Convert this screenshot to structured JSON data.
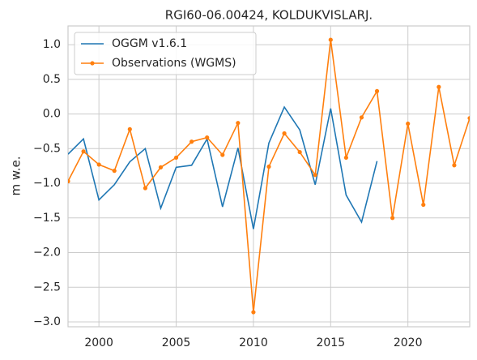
{
  "chart_data": {
    "type": "line",
    "title": "RGI60-06.00424, KOLDUKVISLARJ.",
    "ylabel": "m w.e.",
    "x": [
      1998,
      1999,
      2000,
      2001,
      2002,
      2003,
      2004,
      2005,
      2006,
      2007,
      2008,
      2009,
      2010,
      2011,
      2012,
      2013,
      2014,
      2015,
      2016,
      2017,
      2018,
      2019,
      2020,
      2021,
      2022,
      2023,
      2024
    ],
    "series": [
      {
        "name": "OGGM v1.6.1",
        "color": "#1f77b4",
        "marker": false,
        "values": [
          -0.58,
          -0.36,
          -1.24,
          -1.02,
          -0.69,
          -0.5,
          -1.36,
          -0.77,
          -0.74,
          -0.36,
          -1.34,
          -0.49,
          -1.66,
          -0.42,
          0.1,
          -0.23,
          -1.02,
          0.08,
          -1.17,
          -1.56,
          -0.68,
          null,
          null,
          null,
          null,
          null,
          null
        ]
      },
      {
        "name": "Observations (WGMS)",
        "color": "#ff7f0e",
        "marker": true,
        "values": [
          -0.97,
          -0.54,
          -0.73,
          -0.82,
          -0.22,
          -1.07,
          -0.77,
          -0.63,
          -0.4,
          -0.34,
          -0.59,
          -0.13,
          -2.86,
          -0.76,
          -0.28,
          -0.55,
          -0.88,
          1.07,
          -0.63,
          -0.05,
          0.33,
          -1.5,
          -0.14,
          -1.31,
          0.39,
          -0.74,
          -0.06
        ]
      }
    ],
    "xlim": [
      1998,
      2024
    ],
    "xticks": [
      2000,
      2005,
      2010,
      2015,
      2020
    ],
    "ylim": [
      -3.07,
      1.27
    ],
    "yticks": [
      {
        "value": -3,
        "label": "−3.0"
      },
      {
        "value": -2.5,
        "label": "−2.5"
      },
      {
        "value": -2,
        "label": "−2.0"
      },
      {
        "value": -1.5,
        "label": "−1.5"
      },
      {
        "value": -1,
        "label": "−1.0"
      },
      {
        "value": -0.5,
        "label": "−0.5"
      },
      {
        "value": 0,
        "label": "0.0"
      },
      0.5,
      {
        "value": 1,
        "label": "1.0"
      }
    ],
    "grid": true,
    "legend": "upper left"
  }
}
